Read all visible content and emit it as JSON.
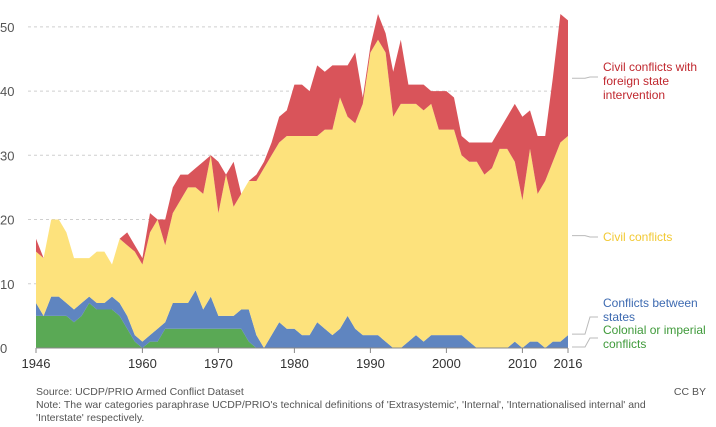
{
  "chart_data": {
    "type": "area",
    "stacked": true,
    "xlabel": "",
    "ylabel": "",
    "xlim": [
      1946,
      2016
    ],
    "ylim": [
      0,
      52
    ],
    "y_ticks": [
      0,
      10,
      20,
      30,
      40,
      50
    ],
    "x_ticks": [
      "1946",
      "1960",
      "1970",
      "1980",
      "1990",
      "2000",
      "2010",
      "2016"
    ],
    "x": [
      1946,
      1947,
      1948,
      1949,
      1950,
      1951,
      1952,
      1953,
      1954,
      1955,
      1956,
      1957,
      1958,
      1959,
      1960,
      1961,
      1962,
      1963,
      1964,
      1965,
      1966,
      1967,
      1968,
      1969,
      1970,
      1971,
      1972,
      1973,
      1974,
      1975,
      1976,
      1977,
      1978,
      1979,
      1980,
      1981,
      1982,
      1983,
      1984,
      1985,
      1986,
      1987,
      1988,
      1989,
      1990,
      1991,
      1992,
      1993,
      1994,
      1995,
      1996,
      1997,
      1998,
      1999,
      2000,
      2001,
      2002,
      2003,
      2004,
      2005,
      2006,
      2007,
      2008,
      2009,
      2010,
      2011,
      2012,
      2013,
      2014,
      2015,
      2016
    ],
    "series": [
      {
        "name": "Colonial or imperial conflicts",
        "color": "#5aa955",
        "values": [
          5,
          5,
          5,
          5,
          5,
          4,
          5,
          7,
          6,
          6,
          6,
          5,
          3,
          1,
          0,
          1,
          1,
          3,
          3,
          3,
          3,
          3,
          3,
          3,
          3,
          3,
          3,
          3,
          1,
          0,
          0,
          0,
          0,
          0,
          0,
          0,
          0,
          0,
          0,
          0,
          0,
          0,
          0,
          0,
          0,
          0,
          0,
          0,
          0,
          0,
          0,
          0,
          0,
          0,
          0,
          0,
          0,
          0,
          0,
          0,
          0,
          0,
          0,
          0,
          0,
          0,
          0,
          0,
          0,
          0,
          0
        ]
      },
      {
        "name": "Conflicts between states",
        "color": "#5f85c0",
        "values": [
          2,
          0,
          3,
          3,
          2,
          2,
          2,
          1,
          1,
          1,
          2,
          2,
          2,
          1,
          1,
          1,
          2,
          1,
          4,
          4,
          4,
          6,
          3,
          5,
          2,
          2,
          2,
          3,
          5,
          2,
          0,
          2,
          4,
          3,
          3,
          2,
          2,
          4,
          3,
          2,
          3,
          5,
          3,
          2,
          2,
          2,
          1,
          0,
          0,
          1,
          2,
          1,
          2,
          2,
          2,
          2,
          2,
          1,
          0,
          0,
          0,
          0,
          0,
          1,
          0,
          1,
          1,
          0,
          1,
          1,
          2
        ]
      },
      {
        "name": "Civil conflicts",
        "color": "#fde27c",
        "values": [
          8,
          9,
          12,
          12,
          11,
          8,
          7,
          6,
          8,
          8,
          5,
          10,
          11,
          13,
          12,
          16,
          17,
          12,
          14,
          16,
          18,
          16,
          18,
          22,
          16,
          22,
          17,
          18,
          20,
          24,
          28,
          28,
          28,
          30,
          30,
          31,
          31,
          29,
          31,
          32,
          36,
          31,
          32,
          36,
          44,
          46,
          45,
          36,
          38,
          37,
          36,
          36,
          36,
          32,
          32,
          32,
          28,
          28,
          29,
          27,
          28,
          31,
          31,
          28,
          23,
          30,
          23,
          26,
          28,
          31,
          31
        ]
      },
      {
        "name": "Civil conflicts with foreign state intervention",
        "color": "#d9545a",
        "values": [
          2,
          0,
          0,
          0,
          0,
          0,
          0,
          0,
          0,
          0,
          0,
          0,
          2,
          1,
          1,
          3,
          0,
          4,
          4,
          4,
          2,
          3,
          5,
          0,
          8,
          0,
          7,
          0,
          0,
          1,
          1,
          2,
          4,
          4,
          8,
          8,
          7,
          11,
          9,
          10,
          5,
          8,
          11,
          1,
          1,
          4,
          3,
          7,
          10,
          3,
          3,
          4,
          2,
          6,
          6,
          5,
          3,
          3,
          3,
          5,
          4,
          3,
          5,
          9,
          13,
          6,
          9,
          7,
          13,
          20,
          18
        ]
      }
    ]
  },
  "labels": {
    "civil_foreign_line1": "Civil conflicts with",
    "civil_foreign_line2": "foreign state",
    "civil_foreign_line3": "intervention",
    "civil_line1": "Civil conflicts",
    "between_line1": "Conflicts between",
    "between_line2": "states",
    "colonial_line1": "Colonial or imperial",
    "colonial_line2": "conflicts"
  },
  "colors": {
    "civil_foreign_text": "#c0282f",
    "civil_text": "#f2c933",
    "between_text": "#3d6ab1",
    "colonial_text": "#3f9a3a"
  },
  "footer": {
    "source": "Source: UCDP/PRIO Armed Conflict Dataset",
    "note": "Note: The war categories paraphrase UCDP/PRIO's technical definitions of 'Extrasystemic', 'Internal', 'Internationalised internal' and 'Interstate' respectively.",
    "license": "CC BY"
  }
}
